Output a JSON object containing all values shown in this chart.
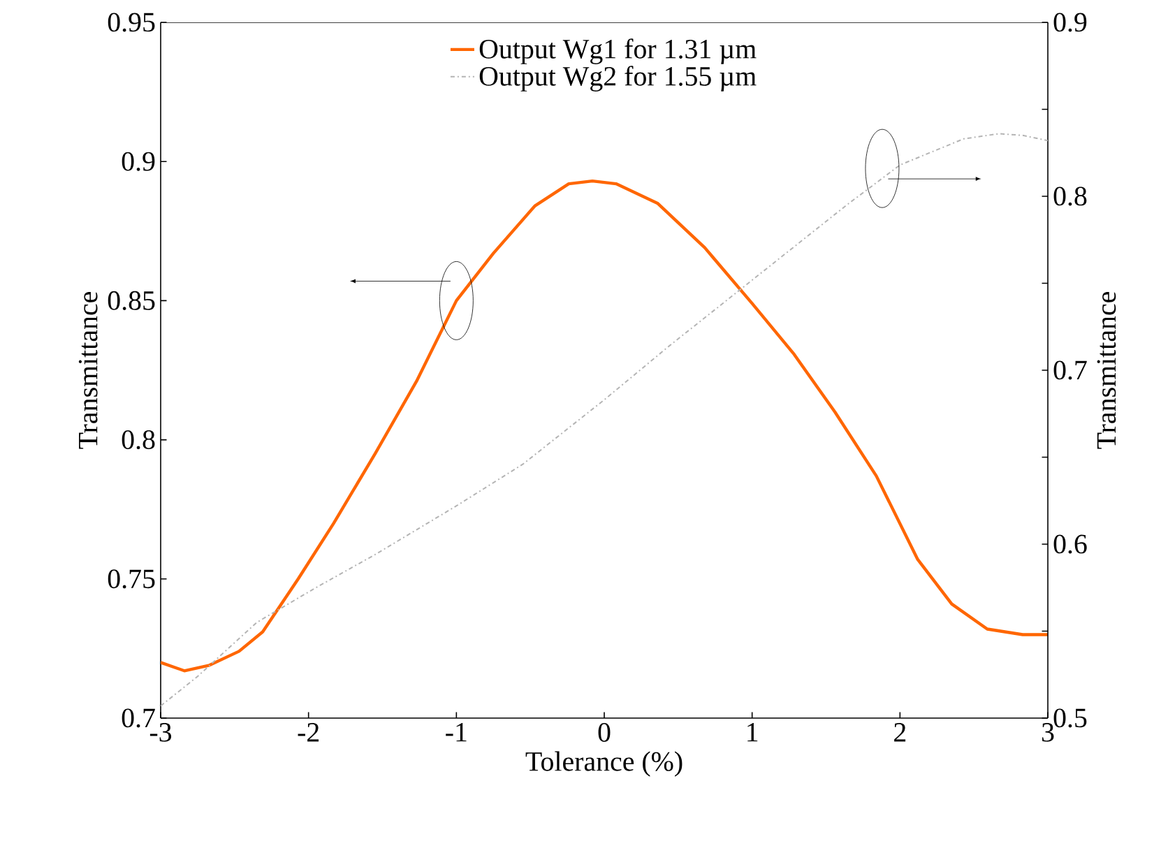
{
  "chart_data": {
    "type": "line",
    "xlabel": "Tolerance (%)",
    "ylabel": "Transmittance",
    "y2label": "Transmittance",
    "xlim": [
      -3,
      3
    ],
    "xticks": [
      -3,
      -2,
      -1,
      0,
      1,
      2,
      3
    ],
    "ylim": [
      0.7,
      0.95
    ],
    "yticks": [
      0.7,
      0.75,
      0.8,
      0.85,
      0.9,
      0.95
    ],
    "y2lim": [
      0.5,
      0.9
    ],
    "y2ticks": [
      0.5,
      {
        "value": 0.55,
        "label": null
      },
      0.6,
      {
        "value": 0.65,
        "label": null
      },
      0.7,
      {
        "value": 0.75,
        "label": null
      },
      0.8,
      {
        "value": 0.85,
        "label": null
      },
      0.9
    ],
    "legend": "top",
    "grid": false,
    "series": [
      {
        "name": "Output Wg1 for 1.31  µm",
        "color": "#ff6600",
        "line_style": "solid",
        "x": [
          -3,
          -2.84,
          -2.67,
          -2.47,
          -2.31,
          -2.07,
          -1.83,
          -1.55,
          -1.27,
          -1.0,
          -0.75,
          -0.47,
          -0.24,
          -0.08,
          0.08,
          0.36,
          0.68,
          1.0,
          1.28,
          1.56,
          1.84,
          2.12,
          2.35,
          2.59,
          2.83,
          3.0
        ],
        "values": [
          0.72,
          0.717,
          0.719,
          0.724,
          0.731,
          0.75,
          0.77,
          0.795,
          0.821,
          0.85,
          0.867,
          0.884,
          0.892,
          0.893,
          0.892,
          0.885,
          0.869,
          0.849,
          0.831,
          0.81,
          0.787,
          0.757,
          0.741,
          0.732,
          0.73,
          0.73
        ]
      },
      {
        "name": "Output Wg2 for 1.55  µm",
        "color": "#b4b4b4",
        "line_style": "dashed",
        "axis": "y2",
        "x": [
          -3,
          -2.75,
          -2.35,
          -1.95,
          -1.55,
          -1.0,
          -0.55,
          0.0,
          0.44,
          0.84,
          1.24,
          1.64,
          2.0,
          2.43,
          2.67,
          2.83,
          3.0
        ],
        "values": [
          0.507,
          0.524,
          0.555,
          0.575,
          0.594,
          0.622,
          0.646,
          0.683,
          0.714,
          0.741,
          0.768,
          0.795,
          0.818,
          0.833,
          0.836,
          0.835,
          0.832
        ]
      }
    ]
  }
}
